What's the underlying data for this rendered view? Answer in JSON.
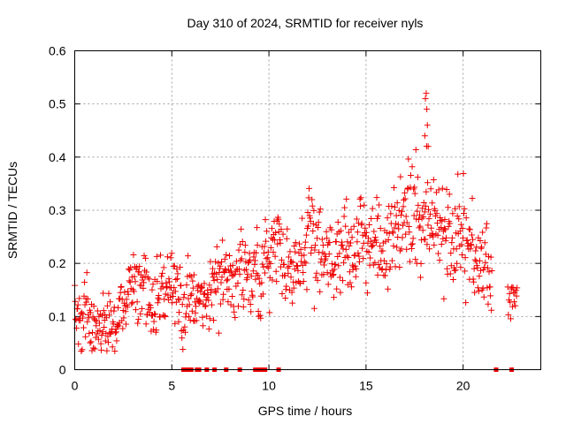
{
  "chart_data": {
    "type": "scatter",
    "title": "Day 310 of 2024, SRMTID for receiver nyls",
    "xlabel": "GPS time / hours",
    "ylabel": "SRMTID / TECUs",
    "xlim": [
      0,
      24
    ],
    "ylim": [
      0,
      0.6
    ],
    "x_ticks": [
      "0",
      "5",
      "10",
      "15",
      "20"
    ],
    "y_ticks": [
      "0",
      "0.1",
      "0.2",
      "0.3",
      "0.4",
      "0.5",
      "0.6"
    ],
    "grid": true,
    "marker": "+",
    "color": "#ee0000",
    "series": [
      {
        "name": "SRMTID",
        "trend": [
          [
            0.0,
            0.1
          ],
          [
            0.5,
            0.1
          ],
          [
            1.0,
            0.09
          ],
          [
            1.5,
            0.085
          ],
          [
            2.0,
            0.09
          ],
          [
            2.5,
            0.12
          ],
          [
            3.0,
            0.16
          ],
          [
            3.5,
            0.11
          ],
          [
            4.0,
            0.12
          ],
          [
            4.5,
            0.15
          ],
          [
            5.0,
            0.16
          ],
          [
            5.5,
            0.14
          ],
          [
            6.0,
            0.12
          ],
          [
            6.5,
            0.13
          ],
          [
            7.0,
            0.14
          ],
          [
            7.5,
            0.16
          ],
          [
            8.0,
            0.18
          ],
          [
            8.5,
            0.17
          ],
          [
            9.0,
            0.15
          ],
          [
            9.5,
            0.17
          ],
          [
            10.0,
            0.19
          ],
          [
            10.5,
            0.24
          ],
          [
            11.0,
            0.21
          ],
          [
            11.5,
            0.2
          ],
          [
            12.0,
            0.21
          ],
          [
            12.5,
            0.22
          ],
          [
            13.0,
            0.2
          ],
          [
            13.5,
            0.19
          ],
          [
            14.0,
            0.2
          ],
          [
            14.5,
            0.23
          ],
          [
            15.0,
            0.23
          ],
          [
            15.5,
            0.22
          ],
          [
            16.0,
            0.23
          ],
          [
            16.5,
            0.26
          ],
          [
            17.0,
            0.3
          ],
          [
            17.5,
            0.28
          ],
          [
            18.0,
            0.31
          ],
          [
            18.5,
            0.28
          ],
          [
            19.0,
            0.26
          ],
          [
            19.5,
            0.24
          ],
          [
            20.0,
            0.23
          ],
          [
            20.5,
            0.22
          ],
          [
            21.0,
            0.19
          ],
          [
            21.5,
            0.15
          ]
        ],
        "late_segment": [
          [
            22.3,
            0.13
          ],
          [
            22.8,
            0.16
          ]
        ],
        "peak": [
          18.1,
          0.52
        ]
      }
    ],
    "zero_points": [
      5.6,
      5.7,
      5.8,
      5.9,
      6.0,
      6.3,
      6.4,
      6.8,
      7.2,
      7.8,
      8.5,
      9.3,
      9.5,
      9.6,
      9.8,
      10.5,
      21.7,
      22.5
    ]
  }
}
